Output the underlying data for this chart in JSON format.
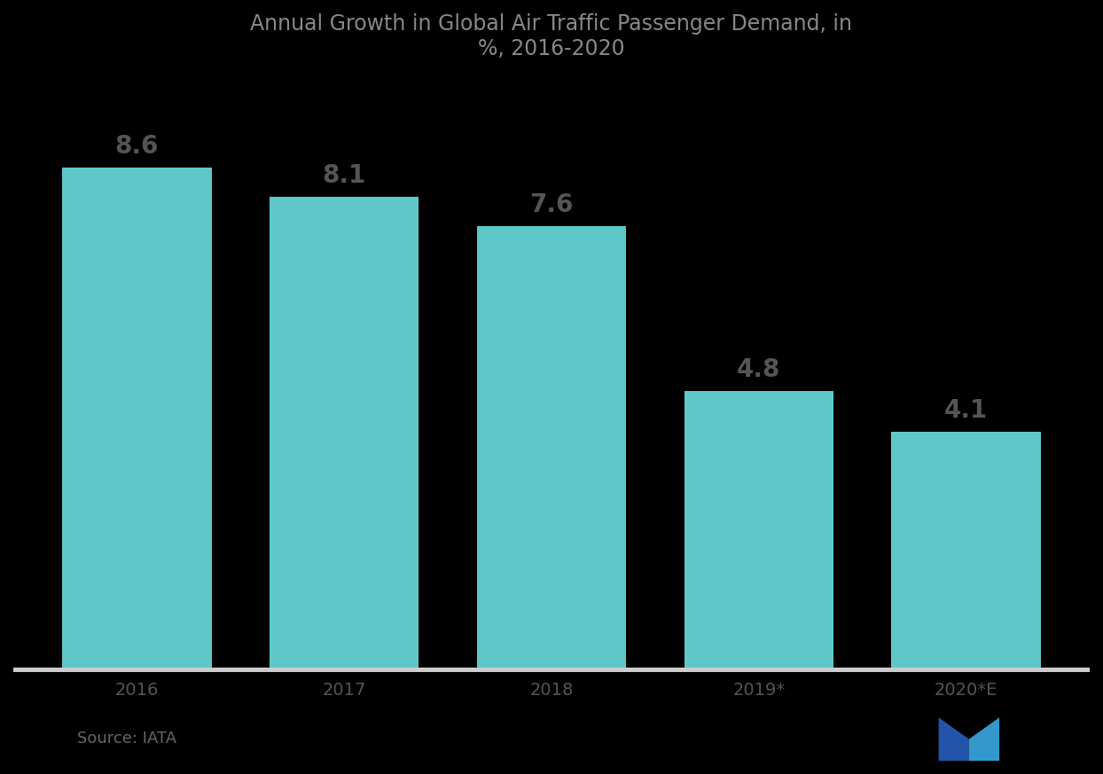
{
  "title_line1": "Annual Growth in Global Air Traffic Passenger Demand, in",
  "title_line2": "%, 2016-2020",
  "categories": [
    "2016",
    "2017",
    "2018",
    "2019*",
    "2020*E"
  ],
  "values": [
    8.6,
    8.1,
    7.6,
    4.8,
    4.1
  ],
  "bar_color": "#5ec8c8",
  "background_color": "#000000",
  "text_color": "#555555",
  "title_color": "#888888",
  "source_text": "Source: IATA",
  "ylim": [
    0,
    10
  ],
  "value_labels": [
    "8.6",
    "8.1",
    "7.6",
    "4.8",
    "4.1"
  ],
  "floor_color": "#cccccc",
  "label_fontsize": 20,
  "tick_fontsize": 14,
  "title_fontsize": 17,
  "bar_width": 0.72
}
